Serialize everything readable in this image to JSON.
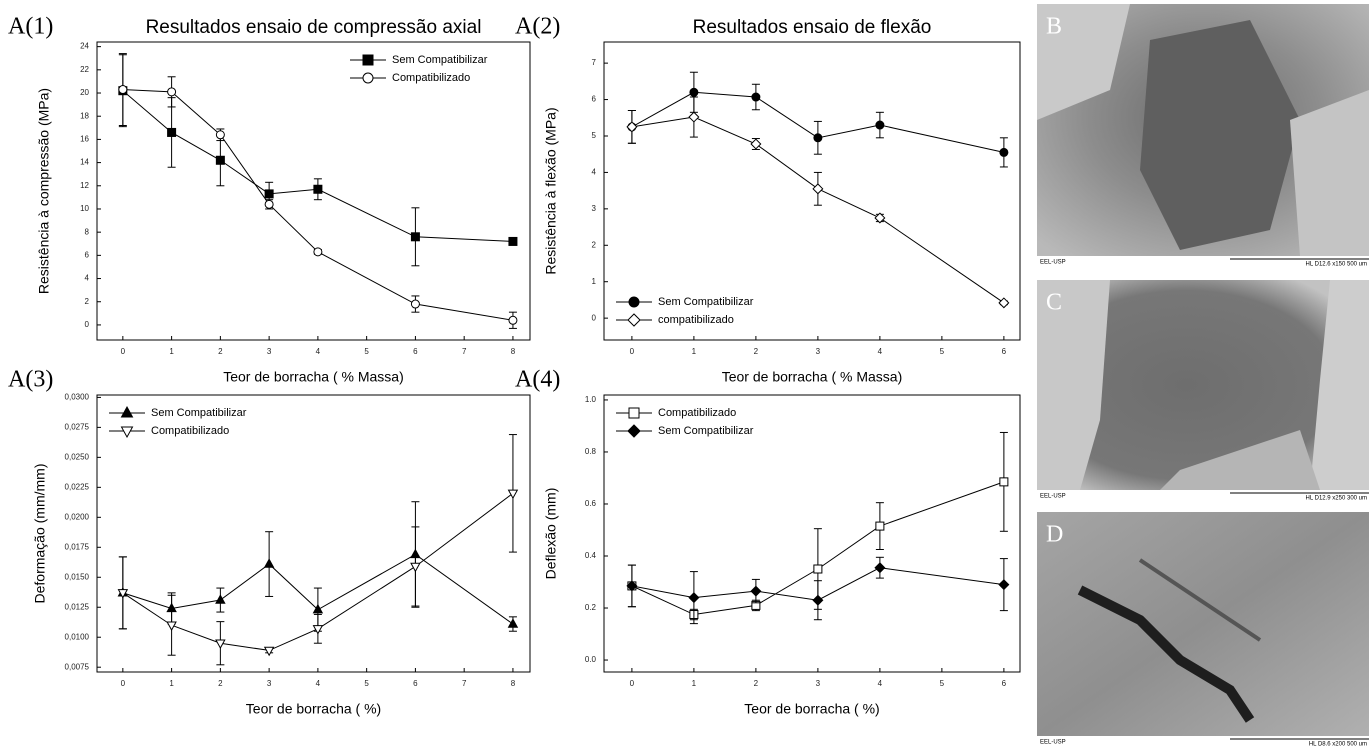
{
  "chart_data": [
    {
      "type": "line",
      "panel_label": "A(1)",
      "title": "Resultados ensaio de compressão axial",
      "xlabel": "Teor de borracha ( % Massa)",
      "ylabel": "Resistência à compressão  (MPa)",
      "x": [
        0,
        1,
        2,
        3,
        4,
        6,
        8
      ],
      "xlim": [
        -0.53,
        8.35
      ],
      "xticks": [
        0,
        1,
        2,
        3,
        4,
        5,
        6,
        7,
        8
      ],
      "ylim": [
        -1.3,
        24.4
      ],
      "yticks": [
        0,
        2,
        4,
        6,
        8,
        10,
        12,
        14,
        16,
        18,
        20,
        22,
        24
      ],
      "legend": "upper right",
      "grid": false,
      "series": [
        {
          "name": "Sem Compatibilizar",
          "color": "#000000",
          "marker": "square",
          "filled": true,
          "values": [
            20.2,
            16.6,
            14.2,
            11.3,
            11.7,
            7.6,
            7.2
          ],
          "errors": [
            3.1,
            3.0,
            2.2,
            1.0,
            0.9,
            2.5,
            0.2
          ]
        },
        {
          "name": "Compatibilizado",
          "color": "#000000",
          "marker": "circle",
          "filled": false,
          "values": [
            20.3,
            20.1,
            16.4,
            10.4,
            6.3,
            1.8,
            0.4
          ],
          "errors": [
            3.1,
            1.3,
            0.5,
            0.4,
            0.2,
            0.7,
            0.7
          ]
        }
      ]
    },
    {
      "type": "line",
      "panel_label": "A(2)",
      "title": "Resultados ensaio de flexão",
      "xlabel": "Teor de borracha  ( % Massa)",
      "ylabel": "Resistência à flexão  (MPa)",
      "x": [
        0,
        1,
        2,
        3,
        4,
        6
      ],
      "xlim": [
        -0.45,
        6.26
      ],
      "xticks": [
        0,
        1,
        2,
        3,
        4,
        5,
        6
      ],
      "ylim": [
        -0.6,
        7.58
      ],
      "yticks": [
        0,
        1,
        2,
        3,
        4,
        5,
        6,
        7
      ],
      "legend": "lower left",
      "grid": false,
      "series": [
        {
          "name": "Sem Compatibilizar",
          "color": "#000000",
          "marker": "circle",
          "filled": true,
          "values": [
            5.25,
            6.2,
            6.07,
            4.95,
            5.3,
            4.55
          ],
          "errors": [
            0.45,
            0.55,
            0.35,
            0.45,
            0.35,
            0.4
          ]
        },
        {
          "name": "compatibilizado",
          "color": "#000000",
          "marker": "diamond",
          "filled": false,
          "values": [
            5.25,
            5.52,
            4.78,
            3.55,
            2.75,
            0.42
          ],
          "errors": [
            0.45,
            0.55,
            0.15,
            0.45,
            0.1,
            0.05
          ]
        }
      ]
    },
    {
      "type": "line",
      "panel_label": "A(3)",
      "xlabel": "Teor de borracha  ( %)",
      "ylabel": "Deformação  (mm/mm)",
      "x": [
        0,
        1,
        2,
        3,
        4,
        6,
        8
      ],
      "xlim": [
        -0.53,
        8.35
      ],
      "xticks": [
        0,
        1,
        2,
        3,
        4,
        5,
        6,
        7,
        8
      ],
      "ylim": [
        0.0071,
        0.0302
      ],
      "yticks": [
        {
          "value": 0.0075,
          "label": "0,0075"
        },
        {
          "value": 0.01,
          "label": "0,0100"
        },
        {
          "value": 0.0125,
          "label": "0,0125"
        },
        {
          "value": 0.015,
          "label": "0,0150"
        },
        {
          "value": 0.0175,
          "label": "0,0175"
        },
        {
          "value": 0.02,
          "label": "0,0200"
        },
        {
          "value": 0.0225,
          "label": "0,0225"
        },
        {
          "value": 0.025,
          "label": "0,0250"
        },
        {
          "value": 0.0275,
          "label": "0,0275"
        },
        {
          "value": 0.03,
          "label": "0,0300"
        }
      ],
      "legend": "upper left",
      "grid": false,
      "series": [
        {
          "name": "Sem Compatibilizar",
          "color": "#000000",
          "marker": "triangle-up",
          "filled": true,
          "values": [
            0.0137,
            0.0124,
            0.0131,
            0.0161,
            0.0123,
            0.0169,
            0.0111
          ],
          "errors": [
            0.003,
            0.0013,
            0.001,
            0.0027,
            0.0018,
            0.0044,
            0.0006
          ]
        },
        {
          "name": "Compatibilizado",
          "color": "#000000",
          "marker": "triangle-down",
          "filled": false,
          "values": [
            0.0137,
            0.011,
            0.0095,
            0.0089,
            0.0107,
            0.0159,
            0.022
          ],
          "errors": [
            0.003,
            0.0025,
            0.0018,
            0.0002,
            0.0012,
            0.0033,
            0.0049
          ]
        }
      ]
    },
    {
      "type": "line",
      "panel_label": "A(4)",
      "xlabel": "Teor de borracha  ( %)",
      "ylabel": "Deflexão  (mm)",
      "x": [
        0,
        1,
        2,
        3,
        4,
        6
      ],
      "xlim": [
        -0.45,
        6.26
      ],
      "xticks": [
        0,
        1,
        2,
        3,
        4,
        5,
        6
      ],
      "ylim": [
        -0.046,
        1.019
      ],
      "yticks": [
        {
          "value": 0,
          "label": "0.0"
        },
        0.2,
        0.4,
        0.6,
        0.8,
        {
          "value": 1,
          "label": "1.0"
        }
      ],
      "legend": "upper left",
      "grid": false,
      "series": [
        {
          "name": "Compatibilizado",
          "color": "#000000",
          "marker": "square",
          "filled": false,
          "values": [
            0.285,
            0.175,
            0.21,
            0.35,
            0.515,
            0.685
          ],
          "errors": [
            0.08,
            0.02,
            0.02,
            0.155,
            0.09,
            0.19
          ]
        },
        {
          "name": "Sem Compatibilizar",
          "color": "#000000",
          "marker": "diamond",
          "filled": true,
          "values": [
            0.285,
            0.24,
            0.265,
            0.23,
            0.355,
            0.29
          ],
          "errors": [
            0.08,
            0.1,
            0.045,
            0.075,
            0.04,
            0.1
          ]
        }
      ]
    }
  ],
  "images": [
    {
      "label": "B",
      "footer_left": "EEL-USP",
      "footer_right": "HL   D12.6  x150    500 um"
    },
    {
      "label": "C",
      "footer_left": "EEL-USP",
      "footer_right": "HL   D12.9  x250    300 um"
    },
    {
      "label": "D",
      "footer_left": "EEL-USP",
      "footer_right": "HL   D8.6   x200    500 um"
    }
  ]
}
